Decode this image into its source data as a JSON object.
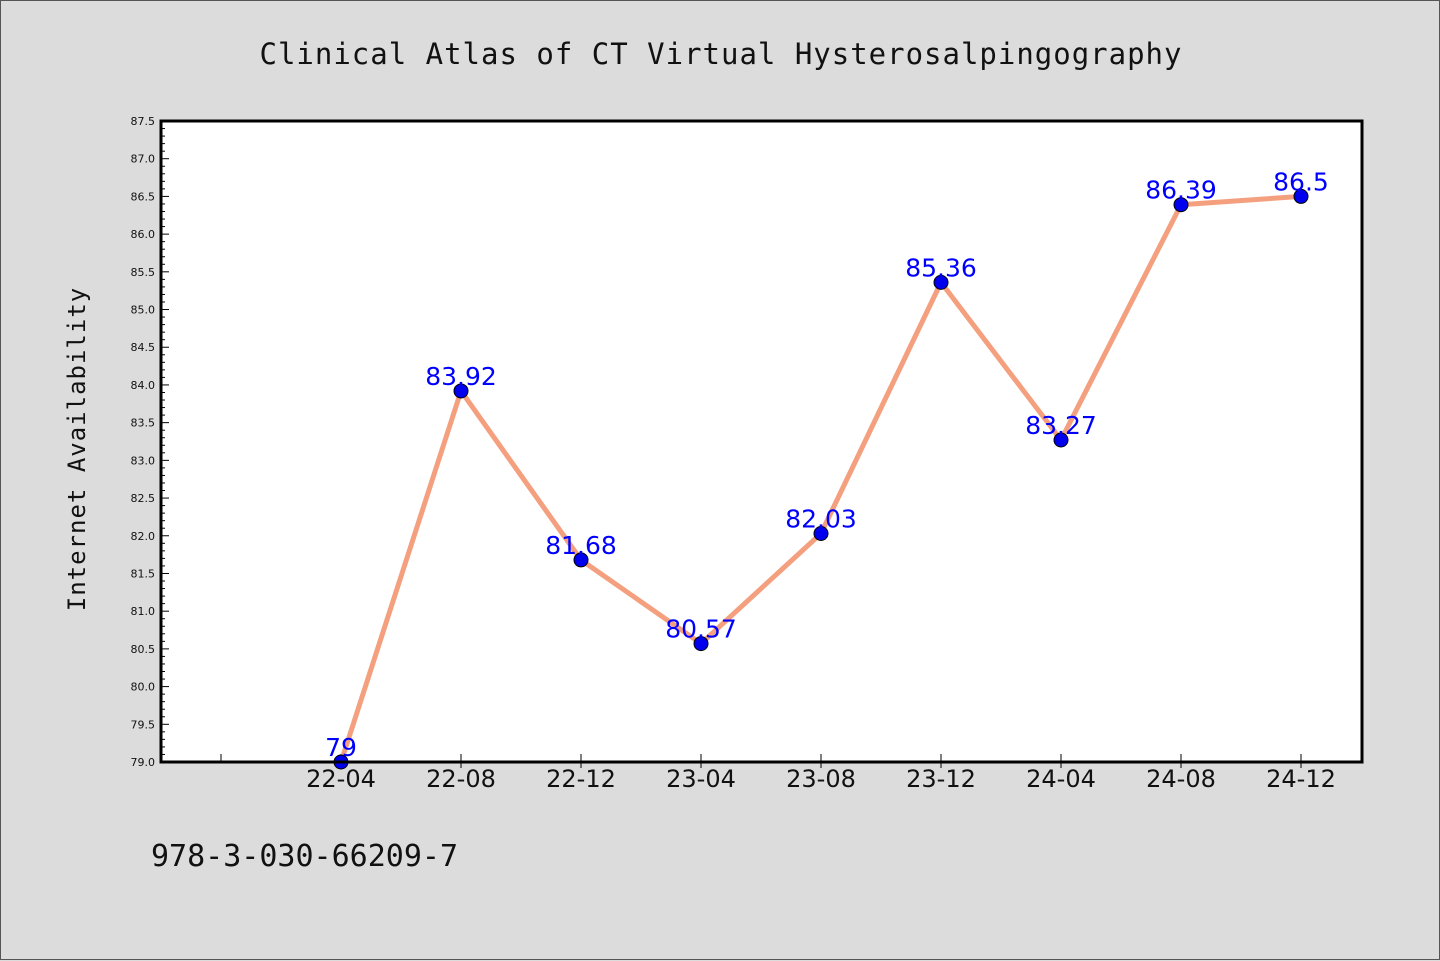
{
  "chart_data": {
    "type": "line",
    "title": "Clinical Atlas of CT Virtual Hysterosalpingography",
    "xlabel": "",
    "ylabel": "Internet Availability",
    "categories": [
      "22-04",
      "22-08",
      "22-12",
      "23-04",
      "23-08",
      "23-12",
      "24-04",
      "24-08",
      "24-12"
    ],
    "series": [
      {
        "values": [
          79,
          83.92,
          81.68,
          80.57,
          82.03,
          85.36,
          83.27,
          86.39,
          86.5
        ],
        "labels": [
          "79",
          "83.92",
          "81.68",
          "80.57",
          "82.03",
          "85.36",
          "83.27",
          "86.39",
          "86.5"
        ],
        "line_color": "#f4a07f",
        "marker_color": "#0000ee"
      }
    ],
    "ylim": [
      79.0,
      87.5
    ],
    "yticks": [
      "79.0",
      "79.5",
      "80.0",
      "80.5",
      "81.0",
      "81.5",
      "82.0",
      "82.5",
      "83.0",
      "83.5",
      "84.0",
      "84.5",
      "85.0",
      "85.5",
      "86.0",
      "86.5",
      "87.0",
      "87.5"
    ],
    "grid": false,
    "legend": "none"
  },
  "footer": {
    "isbn": "978-3-030-66209-7"
  }
}
